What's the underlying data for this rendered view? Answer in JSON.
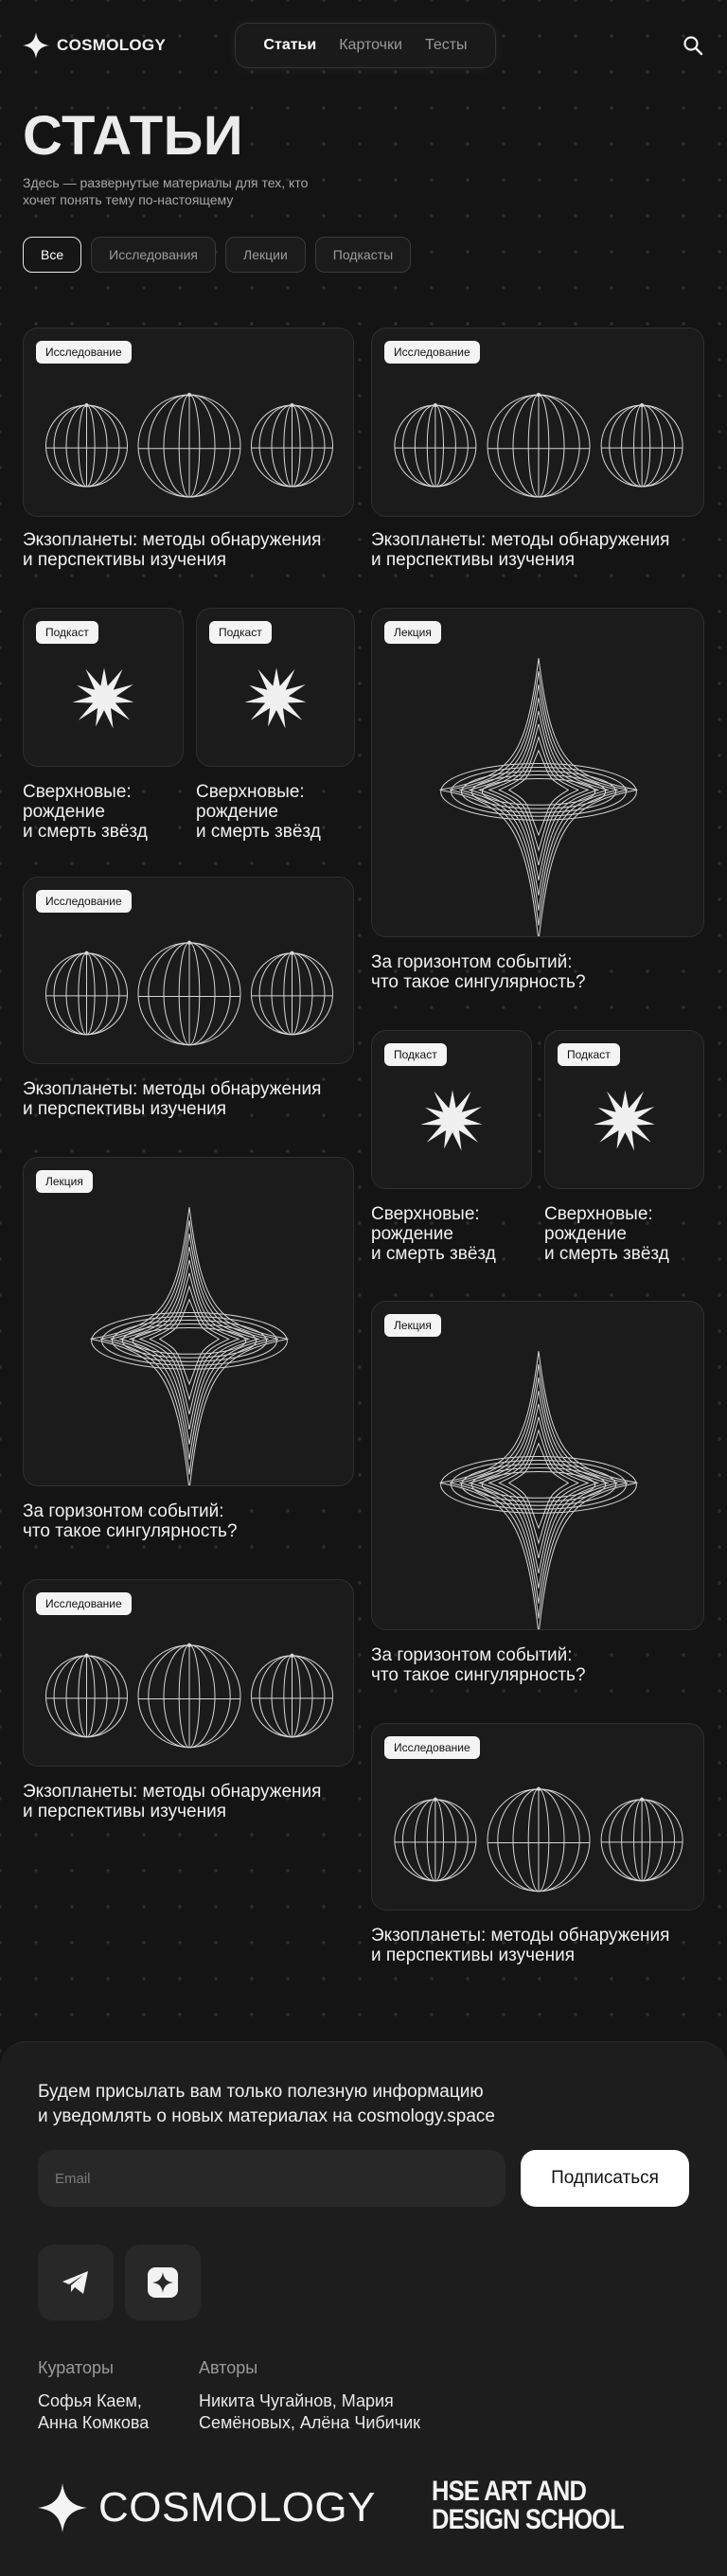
{
  "header": {
    "logo": "COSMOLOGY",
    "nav": [
      {
        "label": "Статьи",
        "active": true
      },
      {
        "label": "Карточки",
        "active": false
      },
      {
        "label": "Тесты",
        "active": false
      }
    ]
  },
  "intro": {
    "title": "СТАТЬИ",
    "subtitle": "Здесь — развернутые материалы для тех, кто хочет понять тему по-настоящему"
  },
  "filters": [
    {
      "label": "Все",
      "active": true
    },
    {
      "label": "Исследования",
      "active": false
    },
    {
      "label": "Лекции",
      "active": false
    },
    {
      "label": "Подкасты",
      "active": false
    }
  ],
  "cards": [
    {
      "badge": "Исследование",
      "title": "Экзопланеты: методы обнаружения\nи перспективы изучения",
      "art": "spheres"
    },
    {
      "badge": "Исследование",
      "title": "Экзопланеты: методы обнаружения\nи перспективы изучения",
      "art": "spheres"
    },
    {
      "badge": "Подкаст",
      "title": "Сверхновые:\nрождение\nи смерть звёзд",
      "art": "star"
    },
    {
      "badge": "Подкаст",
      "title": "Сверхновые:\nрождение\nи смерть звёзд",
      "art": "star"
    },
    {
      "badge": "Лекция",
      "title": "За горизонтом событий:\nчто такое сингулярность?",
      "art": "singularity"
    },
    {
      "badge": "Исследование",
      "title": "Экзопланеты: методы обнаружения\nи перспективы изучения",
      "art": "spheres"
    },
    {
      "badge": "Подкаст",
      "title": "Сверхновые:\nрождение\nи смерть звёзд",
      "art": "star"
    },
    {
      "badge": "Подкаст",
      "title": "Сверхновые:\nрождение\nи смерть звёзд",
      "art": "star"
    },
    {
      "badge": "Лекция",
      "title": "За горизонтом событий:\nчто такое сингулярность?",
      "art": "singularity"
    },
    {
      "badge": "Лекция",
      "title": "За горизонтом событий:\nчто такое сингулярность?",
      "art": "singularity"
    },
    {
      "badge": "Исследование",
      "title": "Экзопланеты: методы обнаружения\nи перспективы изучения",
      "art": "spheres"
    },
    {
      "badge": "Исследование",
      "title": "Экзопланеты: методы обнаружения\nи перспективы изучения",
      "art": "spheres"
    }
  ],
  "footer": {
    "text": "Будем присылать вам только полезную информацию\nи уведомлять о новых материалах на cosmology.space",
    "email_placeholder": "Email",
    "subscribe_label": "Подписаться",
    "social": [
      "telegram-icon",
      "star-icon"
    ],
    "curators_label": "Кураторы",
    "curators": "Софья Каем,\nАнна Комкова",
    "authors_label": "Авторы",
    "authors": "Никита Чугайнов, Мария\nСемёновых, Алёна Чибичик",
    "logo": "COSMOLOGY",
    "school": "HSE ART AND\nDESIGN SCHOOL"
  },
  "colors": {
    "background": "#141414",
    "card": "#1b1b1b",
    "accent": "#ffffff"
  }
}
